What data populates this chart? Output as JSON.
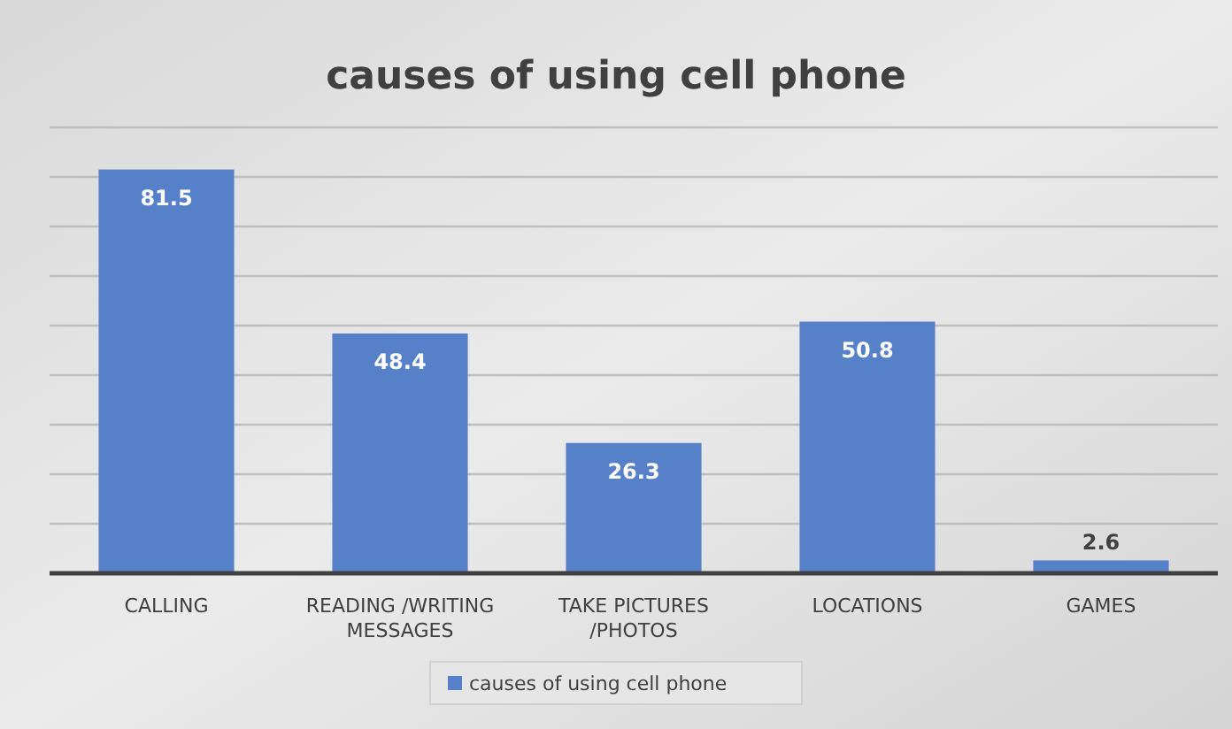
{
  "chart_data": {
    "type": "bar",
    "title": "causes of using cell phone",
    "categories": [
      "CALLING",
      "READING /WRITING MESSAGES",
      "TAKE PICTURES /PHOTOS",
      "LOCATIONS",
      "GAMES"
    ],
    "series": [
      {
        "name": "causes of using cell phone",
        "color": "#5681c9",
        "values": [
          81.5,
          48.4,
          26.3,
          50.8,
          2.6
        ]
      }
    ],
    "ylim": [
      0,
      90
    ],
    "yticks": [
      {
        "value": 0,
        "label": null
      },
      {
        "value": 10,
        "label": null
      },
      {
        "value": 20,
        "label": null
      },
      {
        "value": 30,
        "label": null
      },
      {
        "value": 40,
        "label": null
      },
      {
        "value": 50,
        "label": null
      },
      {
        "value": 60,
        "label": null
      },
      {
        "value": 70,
        "label": null
      },
      {
        "value": 80,
        "label": null
      },
      {
        "value": 90,
        "label": null
      }
    ],
    "tick_labels": "x",
    "grid": "y",
    "legend": "bottom",
    "data_labels": true
  }
}
